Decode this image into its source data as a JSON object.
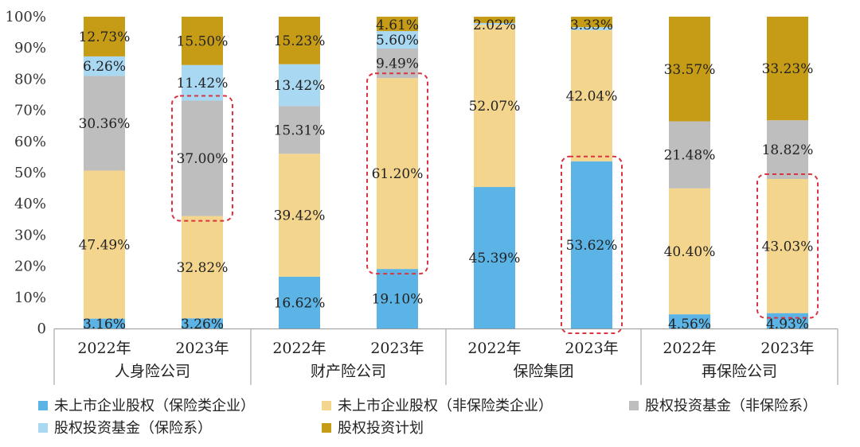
{
  "chart_data": {
    "type": "bar",
    "stacked": true,
    "yaxis": {
      "ticks": [
        "0",
        "10%",
        "20%",
        "30%",
        "40%",
        "50%",
        "60%",
        "70%",
        "80%",
        "90%",
        "100%"
      ],
      "ylim": [
        0,
        100
      ]
    },
    "groups": [
      {
        "name": "人身险公司",
        "categories": [
          "2022年",
          "2023年"
        ]
      },
      {
        "name": "财产险公司",
        "categories": [
          "2022年",
          "2023年"
        ]
      },
      {
        "name": "保险集团",
        "categories": [
          "2022年",
          "2023年"
        ]
      },
      {
        "name": "再保险公司",
        "categories": [
          "2022年",
          "2023年"
        ]
      }
    ],
    "series": [
      {
        "name": "未上市企业股权（保险类企业）",
        "color": "#5BB4E5",
        "values": [
          3.16,
          3.26,
          16.62,
          19.1,
          45.39,
          53.62,
          4.56,
          4.93
        ],
        "labels": [
          "3.16%",
          "3.26%",
          "16.62%",
          "19.10%",
          "45.39%",
          "53.62%",
          "4.56%",
          "4.93%"
        ]
      },
      {
        "name": "未上市企业股权（非保险类企业）",
        "color": "#F3D58E",
        "values": [
          47.49,
          32.82,
          39.42,
          61.2,
          52.07,
          42.04,
          40.4,
          43.03
        ],
        "labels": [
          "47.49%",
          "32.82%",
          "39.42%",
          "61.20%",
          "52.07%",
          "42.04%",
          "40.40%",
          "43.03%"
        ]
      },
      {
        "name": "股权投资基金（非保险系）",
        "color": "#BEBEBE",
        "values": [
          30.36,
          37.0,
          15.31,
          9.49,
          0,
          0,
          21.48,
          18.82
        ],
        "labels": [
          "30.36%",
          "37.00%",
          "15.31%",
          "9.49%",
          "",
          "",
          "21.48%",
          "18.82%"
        ]
      },
      {
        "name": "股权投资基金（保险系）",
        "color": "#A9D8F2",
        "values": [
          6.26,
          11.42,
          13.42,
          5.6,
          0.52,
          1.01,
          0,
          0
        ],
        "labels": [
          "6.26%",
          "11.42%",
          "13.42%",
          "5.60%",
          "",
          "",
          "",
          ""
        ]
      },
      {
        "name": "股权投资计划",
        "color": "#C69C17",
        "values": [
          12.73,
          15.5,
          15.23,
          4.61,
          2.02,
          3.33,
          33.57,
          33.23
        ],
        "labels": [
          "12.73%",
          "15.50%",
          "15.23%",
          "4.61%",
          "2.02%",
          "3.33%",
          "33.57%",
          "33.23%"
        ]
      }
    ],
    "highlights": [
      {
        "bar": 1,
        "from": 36.08,
        "to": 73.08
      },
      {
        "bar": 3,
        "from": 19.1,
        "to": 80.3
      },
      {
        "bar": 5,
        "from": 0,
        "to": 53.62
      },
      {
        "bar": 7,
        "from": 4.93,
        "to": 47.96
      }
    ],
    "legend_position": "bottom",
    "grid": false
  }
}
